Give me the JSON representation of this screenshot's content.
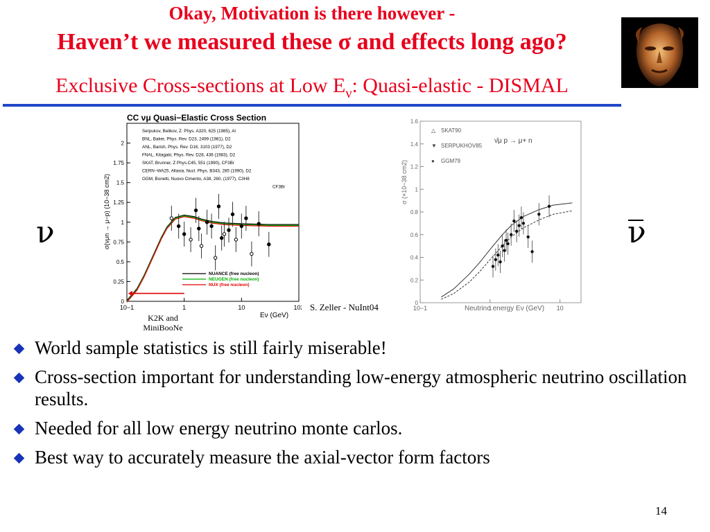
{
  "slide": {
    "title_line1": "Okay, Motivation is there however -",
    "title_line2": "Haven’t we measured these σ and effects long ago?",
    "title_line3_main": "Exclusive Cross-sections at Low E",
    "title_line3_sub": "ν",
    "title_line3_rest": ": Quasi-elastic - DISMAL",
    "nu_left": "ν",
    "nu_right": "ν",
    "credit": "S. Zeller - NuInt04",
    "k2k_label_line1": "K2K and",
    "k2k_label_line2": "MiniBooNe",
    "page_number": "14",
    "bullets": [
      "World sample statistics is still fairly miserable!",
      "Cross-section important for understanding low-energy atmospheric neutrino oscillation results.",
      "Needed for all low energy neutrino monte carlos.",
      "Best way to accurately measure the axial-vector form factors"
    ],
    "colors": {
      "title": "#e8001c",
      "rule": "#1f47c7",
      "bullet": "#1733b8"
    },
    "icons": {
      "bullet": "diamond-icon",
      "portrait": "face-portrait-icon"
    }
  },
  "chart_data": [
    {
      "type": "scatter",
      "title": "CC νμ Quasi−Elastic Cross Section",
      "xlabel": "Eν (GeV)",
      "ylabel": "σ(νμn → μ−p) (10−38 cm2)",
      "xscale": "log",
      "xlim": [
        0.1,
        100
      ],
      "ylim": [
        0,
        2.25
      ],
      "xticks": [
        "10−1",
        "1",
        "10",
        "102"
      ],
      "yticks": [
        "0",
        "0.25",
        "0.5",
        "0.75",
        "1",
        "1.25",
        "1.5",
        "1.75",
        "2"
      ],
      "legend_experiments": [
        "Serpukov, Belikov, Z. Phys. A320, 625 (1985), Al",
        "BNL, Baker, Phys. Rev. D23, 2499 (1981), D2",
        "ANL, Barish, Phys. Rev. D16, 3103 (1977), D2",
        "FNAL, Kitagaki, Phys. Rev. D28, 436 (1983), D2",
        "SKAT, Brunner, Z Phys.C45, 551 (1990), CF3Br",
        "CERN−WA25, Allasia, Nucl. Phys. B343, 285 (1990), D2",
        "GGM, Bonetti, Nuovo Cimento, A38, 260, (1977), C3H8",
        "CF3Br"
      ],
      "legend_models": [
        {
          "name": "NUANCE (free nucleon)",
          "color": "#000000"
        },
        {
          "name": "NEUGEN (free nucleon)",
          "color": "#00b000"
        },
        {
          "name": "NUX (free nucleon)",
          "color": "#e00000"
        }
      ],
      "curve": {
        "x": [
          0.1,
          0.15,
          0.2,
          0.3,
          0.4,
          0.5,
          0.7,
          1.0,
          1.5,
          2,
          3,
          5,
          10,
          30,
          100
        ],
        "y": [
          0.0,
          0.15,
          0.32,
          0.6,
          0.8,
          0.93,
          1.05,
          1.08,
          1.06,
          1.03,
          1.0,
          0.98,
          0.97,
          0.96,
          0.96
        ]
      },
      "points": {
        "x": [
          0.6,
          0.8,
          1.0,
          1.3,
          1.6,
          1.8,
          2.0,
          2.5,
          3.0,
          3.5,
          4.0,
          4.5,
          5.0,
          6.0,
          7.0,
          8.0,
          10.0,
          12.0,
          15.0,
          20.0,
          30.0
        ],
        "y": [
          1.05,
          0.95,
          0.85,
          0.78,
          1.15,
          0.92,
          0.7,
          1.0,
          0.95,
          0.55,
          1.2,
          0.8,
          0.85,
          0.9,
          1.1,
          0.78,
          0.95,
          1.05,
          0.6,
          0.98,
          0.72
        ]
      },
      "annotation_arrow": {
        "from_x": 0.1,
        "to_x": 1.0,
        "y": 0.1
      }
    },
    {
      "type": "scatter",
      "title": "",
      "annotation": "ν̄μ p → μ+ n",
      "xlabel": "Neutrino energy Eν (GeV)",
      "ylabel": "σ (×10−38 cm2)",
      "xscale": "log",
      "xlim": [
        0.1,
        20
      ],
      "ylim": [
        0,
        1.6
      ],
      "xticks": [
        "10−1",
        "1",
        "10"
      ],
      "yticks": [
        "0",
        "0.2",
        "0.4",
        "0.6",
        "0.8",
        "1",
        "1.2",
        "1.4",
        "1.6"
      ],
      "legend": [
        "SKAT90",
        "SERPUKHOV85",
        "GGM79"
      ],
      "curve_upper": {
        "x": [
          0.2,
          0.3,
          0.5,
          0.7,
          1.0,
          1.5,
          2,
          3,
          5,
          8,
          15
        ],
        "y": [
          0.05,
          0.12,
          0.25,
          0.35,
          0.47,
          0.6,
          0.68,
          0.76,
          0.82,
          0.86,
          0.88
        ]
      },
      "curve_lower": {
        "x": [
          0.2,
          0.3,
          0.5,
          0.7,
          1.0,
          1.5,
          2,
          3,
          5,
          8,
          15
        ],
        "y": [
          0.03,
          0.08,
          0.18,
          0.27,
          0.38,
          0.5,
          0.58,
          0.66,
          0.73,
          0.78,
          0.81
        ]
      },
      "points": {
        "x": [
          1.1,
          1.2,
          1.3,
          1.4,
          1.5,
          1.6,
          1.7,
          1.8,
          2.0,
          2.2,
          2.4,
          2.6,
          2.8,
          3.0,
          3.5,
          4.0,
          5.0,
          7.0
        ],
        "y": [
          0.32,
          0.38,
          0.42,
          0.36,
          0.5,
          0.46,
          0.55,
          0.52,
          0.6,
          0.72,
          0.63,
          0.68,
          0.75,
          0.7,
          0.58,
          0.45,
          0.78,
          0.85
        ]
      }
    }
  ]
}
